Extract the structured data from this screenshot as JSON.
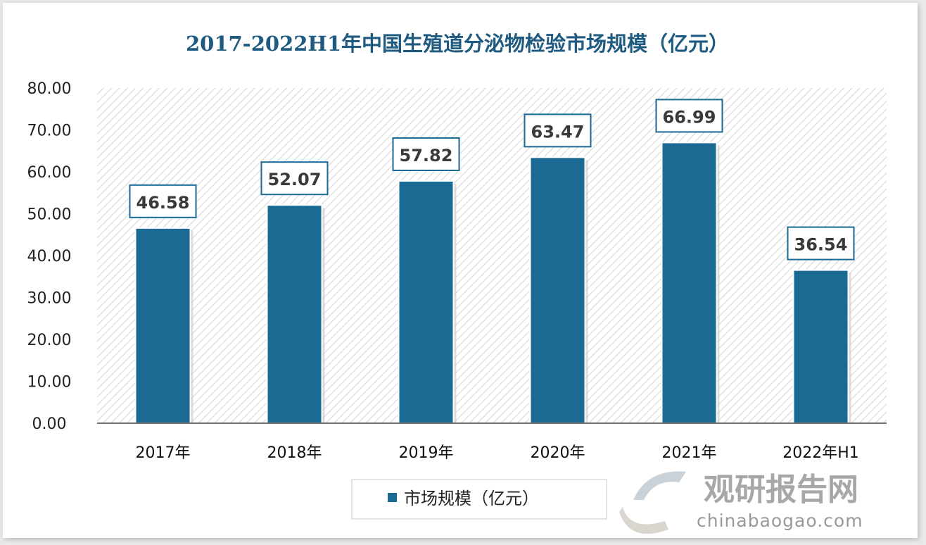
{
  "chart_data": {
    "type": "bar",
    "title": "2017-2022H1年中国生殖道分泌物检验市场规模（亿元）",
    "categories": [
      "2017年",
      "2018年",
      "2019年",
      "2020年",
      "2021年",
      "2022年H1"
    ],
    "series": [
      {
        "name": "市场规模（亿元）",
        "values": [
          46.58,
          52.07,
          57.82,
          63.47,
          66.99,
          36.54
        ]
      }
    ],
    "data_labels": [
      "46.58",
      "52.07",
      "57.82",
      "63.47",
      "66.99",
      "36.54"
    ],
    "yticks": [
      "0.00",
      "10.00",
      "20.00",
      "30.00",
      "40.00",
      "50.00",
      "60.00",
      "70.00",
      "80.00"
    ],
    "ylim": [
      0,
      80
    ],
    "xlabel": "",
    "ylabel": "",
    "legend_position": "bottom",
    "colors": {
      "bar": "#1a6a93",
      "title": "#1f5a80",
      "label_border": "#1a6a93"
    }
  },
  "watermark": {
    "cn": "观研报告网",
    "url": "chinabaogao.com"
  }
}
